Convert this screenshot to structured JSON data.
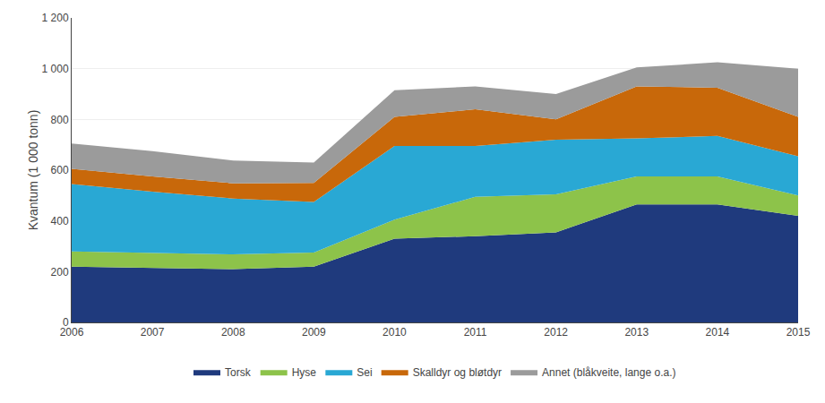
{
  "chart_data": {
    "type": "area",
    "stacked": true,
    "x": [
      2006,
      2007,
      2008,
      2009,
      2010,
      2011,
      2012,
      2013,
      2014,
      2015
    ],
    "series": [
      {
        "name": "Torsk",
        "color": "#1F3A7D",
        "values": [
          220,
          215,
          210,
          220,
          330,
          340,
          355,
          465,
          465,
          420
        ]
      },
      {
        "name": "Hyse",
        "color": "#8DC34A",
        "values": [
          60,
          60,
          58,
          55,
          75,
          155,
          150,
          110,
          110,
          80
        ]
      },
      {
        "name": "Sei",
        "color": "#29A8D4",
        "values": [
          265,
          240,
          220,
          200,
          290,
          200,
          215,
          150,
          160,
          155
        ]
      },
      {
        "name": "Skalldyr og bløtdyr",
        "color": "#C8680A",
        "values": [
          60,
          60,
          60,
          75,
          115,
          145,
          80,
          205,
          190,
          155
        ]
      },
      {
        "name": "Annet (blåkveite, lange o.a.)",
        "color": "#9B9B9B",
        "values": [
          100,
          100,
          90,
          80,
          105,
          90,
          100,
          75,
          100,
          190
        ]
      }
    ],
    "ylabel": "Kvantum (1 000 tonn)",
    "xlim": [
      2006,
      2015
    ],
    "xticks": [
      2006,
      2007,
      2008,
      2009,
      2010,
      2011,
      2012,
      2013,
      2014,
      2015
    ],
    "ylim": [
      0,
      1200
    ],
    "yticks": [
      0,
      200,
      400,
      600,
      800,
      {
        "value": 1000,
        "label": "1 000"
      },
      {
        "value": 1200,
        "label": "1 200"
      }
    ],
    "grid": "y",
    "legend": "bottom"
  }
}
